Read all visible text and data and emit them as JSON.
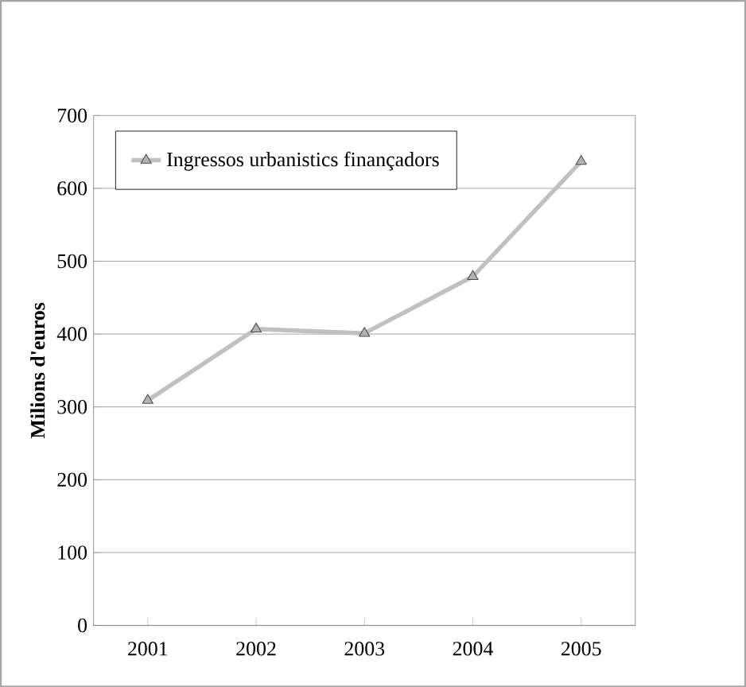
{
  "chart_data": {
    "type": "line",
    "ylabel": "Milions d'euros",
    "categories": [
      "2001",
      "2002",
      "2003",
      "2004",
      "2005"
    ],
    "series": [
      {
        "name": "Ingressos urbanistics finançadors",
        "color": "#c0c0c0",
        "values": [
          309,
          407,
          401,
          479,
          637
        ]
      }
    ],
    "ylim": [
      0,
      700
    ],
    "yticks": [
      0,
      100,
      200,
      300,
      400,
      500,
      600,
      700
    ],
    "grid": "y",
    "legend": "top left",
    "marker": "triangle",
    "line_style": "solid"
  }
}
